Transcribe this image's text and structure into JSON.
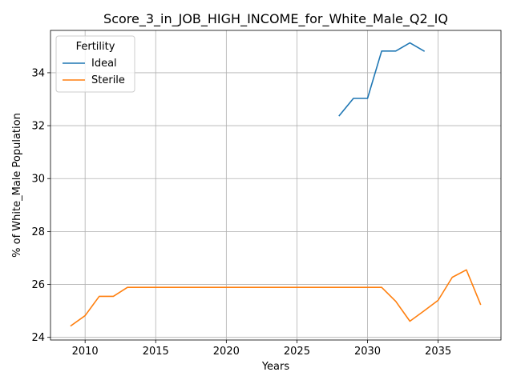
{
  "chart_data": {
    "type": "line",
    "title": "Score_3_in_JOB_HIGH_INCOME_for_White_Male_Q2_IQ",
    "xlabel": "Years",
    "ylabel": "% of White_Male Population",
    "xlim": [
      2007.55,
      2039.45
    ],
    "ylim": [
      23.9,
      35.6
    ],
    "xticks": [
      2010,
      2015,
      2020,
      2025,
      2030,
      2035
    ],
    "yticks": [
      24,
      26,
      28,
      30,
      32,
      34
    ],
    "grid": true,
    "legend": {
      "title": "Fertility",
      "placement": "top-left"
    },
    "series": [
      {
        "name": "Ideal",
        "color": "#1f77b4",
        "x": [
          2028,
          2029,
          2030,
          2031,
          2032,
          2033,
          2034
        ],
        "y": [
          32.38,
          33.03,
          33.03,
          34.82,
          34.82,
          35.13,
          34.82
        ]
      },
      {
        "name": "Sterile",
        "color": "#ff7f0e",
        "x": [
          2009,
          2010,
          2011,
          2012,
          2013,
          2014,
          2015,
          2016,
          2017,
          2018,
          2019,
          2020,
          2021,
          2022,
          2023,
          2024,
          2025,
          2026,
          2027,
          2028,
          2029,
          2030,
          2031,
          2032,
          2033,
          2034,
          2035,
          2036,
          2037,
          2038
        ],
        "y": [
          24.44,
          24.82,
          25.55,
          25.55,
          25.89,
          25.89,
          25.89,
          25.89,
          25.89,
          25.89,
          25.89,
          25.89,
          25.89,
          25.89,
          25.89,
          25.89,
          25.89,
          25.89,
          25.89,
          25.89,
          25.89,
          25.89,
          25.89,
          25.36,
          24.61,
          25.0,
          25.4,
          26.27,
          26.55,
          25.25
        ]
      }
    ]
  }
}
